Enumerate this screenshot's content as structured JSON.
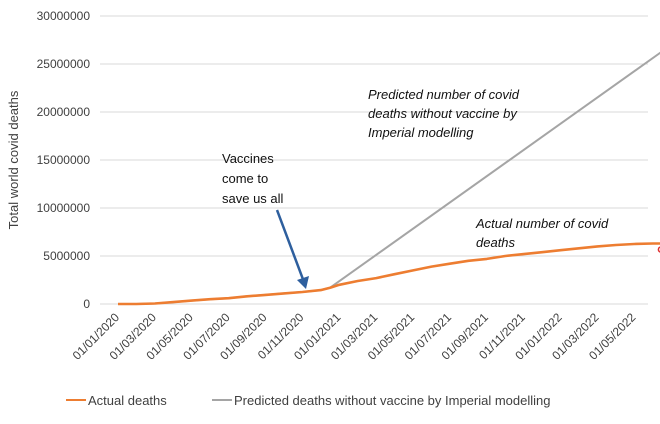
{
  "chart_data": {
    "type": "line",
    "title": "",
    "xlabel": "",
    "ylabel": "Total world covid deaths",
    "ylim": [
      0,
      30000000
    ],
    "yticks": [
      0,
      5000000,
      10000000,
      15000000,
      20000000,
      25000000,
      30000000
    ],
    "ytick_labels": [
      "0",
      "5000000",
      "10000000",
      "15000000",
      "20000000",
      "25000000",
      "30000000"
    ],
    "xtick_labels": [
      "01/01/2020",
      "01/03/2020",
      "01/05/2020",
      "01/07/2020",
      "01/09/2020",
      "01/11/2020",
      "01/01/2021",
      "01/03/2021",
      "01/05/2021",
      "01/07/2021",
      "01/09/2021",
      "01/11/2021",
      "01/01/2022",
      "01/03/2022",
      "01/05/2022"
    ],
    "x_months": [
      0,
      2,
      4,
      6,
      8,
      10,
      12,
      14,
      16,
      18,
      20,
      22,
      24,
      26,
      28
    ],
    "xlim_months": [
      0,
      29.5
    ],
    "grid": true,
    "series": [
      {
        "name": "Actual deaths",
        "color": "#ed7d31",
        "x_months": [
          0,
          1,
          2,
          3,
          4,
          5,
          6,
          7,
          8,
          9,
          10,
          11,
          11.5,
          12,
          13,
          14,
          15,
          16,
          17,
          18,
          19,
          20,
          21,
          22,
          23,
          24,
          25,
          26,
          27,
          28,
          29,
          29.5
        ],
        "values": [
          0,
          0,
          50000,
          200000,
          350000,
          500000,
          600000,
          800000,
          950000,
          1100000,
          1250000,
          1450000,
          1700000,
          2000000,
          2400000,
          2700000,
          3100000,
          3500000,
          3900000,
          4200000,
          4500000,
          4700000,
          5000000,
          5200000,
          5400000,
          5600000,
          5800000,
          6000000,
          6150000,
          6250000,
          6300000,
          6300000
        ]
      },
      {
        "name": "Predicted deaths without vaccine by Imperial modelling",
        "color": "#a5a5a5",
        "x_months": [
          0,
          1,
          2,
          3,
          4,
          5,
          6,
          7,
          8,
          9,
          10,
          11,
          11.5,
          29.5
        ],
        "values": [
          0,
          0,
          50000,
          200000,
          350000,
          500000,
          600000,
          800000,
          950000,
          1100000,
          1250000,
          1450000,
          1700000,
          26300000
        ]
      }
    ],
    "annotations": {
      "predicted": [
        "Predicted number of covid",
        "deaths without vaccine by",
        "Imperial modelling"
      ],
      "vaccines": [
        "Vaccines",
        "come to",
        "save us all"
      ],
      "actual": [
        "Actual number of covid",
        "deaths"
      ]
    },
    "arrow_color": "#2e5f9e",
    "marker_color": "#e03030"
  }
}
